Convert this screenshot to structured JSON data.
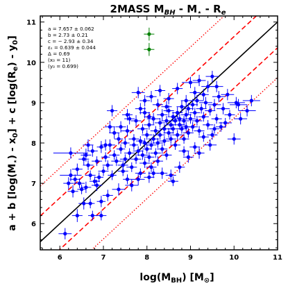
{
  "chart_data": {
    "type": "scatter",
    "title": "2MASS M",
    "title_sub": "BH",
    "title_rest": " - M",
    "title_star": "⋆",
    "title_tail": " - R",
    "title_sub2": "e",
    "xlabel": "log(M",
    "xlabel_sub": "BH",
    "xlabel_tail": ") [M",
    "xlabel_sun": "⊙",
    "xlabel_end": "]",
    "ylabel": "a + b [log(M",
    "ylabel_star": "⋆",
    "ylabel_mid": ") - x",
    "ylabel_sub0": "0",
    "ylabel_mid2": "] + c [log(R",
    "ylabel_sube": "e",
    "ylabel_mid3": ") - y",
    "ylabel_suby": "0",
    "ylabel_end": "]",
    "xlim": [
      5.55,
      11.0
    ],
    "ylim": [
      5.35,
      11.15
    ],
    "xticks": [
      6,
      7,
      8,
      9,
      10,
      11
    ],
    "yticks": [
      6,
      7,
      8,
      9,
      10,
      11
    ],
    "annotations": [
      "a = 7.657 ± 0.062",
      "b = 2.73 ± 0.21",
      "c = − 2.93 ± 0.34",
      "εₛ = 0.639 ± 0.044",
      "Δ = 0.69",
      "(x₀ = 11)",
      "(y₀ = 0.699)"
    ],
    "fit_line": {
      "intercept": 0.0,
      "slope": 1.0,
      "color": "#000000"
    },
    "scatter_band": {
      "offset": 0.639,
      "color": "#ff0000"
    },
    "total_band": {
      "offset": 1.38,
      "color": "#ff0000"
    },
    "series": [
      {
        "color": "#0000ff",
        "points": [
          [
            6.12,
            5.75,
            0.15,
            0.14
          ],
          [
            6.3,
            6.8,
            0.12,
            0.15
          ],
          [
            6.4,
            6.2,
            0.12,
            0.16
          ],
          [
            6.55,
            6.5,
            0.12,
            0.15
          ],
          [
            6.6,
            6.9,
            0.12,
            0.14
          ],
          [
            6.7,
            6.5,
            0.1,
            0.12
          ],
          [
            6.75,
            6.2,
            0.1,
            0.12
          ],
          [
            6.95,
            6.2,
            0.12,
            0.12
          ],
          [
            6.95,
            6.55,
            0.1,
            0.14
          ],
          [
            6.2,
            7.0,
            0.12,
            0.15
          ],
          [
            6.25,
            7.2,
            0.25,
            0.15
          ],
          [
            6.35,
            7.1,
            0.12,
            0.12
          ],
          [
            6.45,
            7.0,
            0.12,
            0.12
          ],
          [
            6.5,
            6.85,
            0.1,
            0.12
          ],
          [
            6.6,
            7.7,
            0.12,
            0.16
          ],
          [
            6.65,
            7.45,
            0.12,
            0.12
          ],
          [
            6.7,
            7.2,
            0.12,
            0.12
          ],
          [
            6.75,
            7.8,
            0.12,
            0.14
          ],
          [
            6.85,
            7.55,
            0.12,
            0.12
          ],
          [
            6.9,
            7.15,
            0.1,
            0.12
          ],
          [
            6.95,
            7.9,
            0.1,
            0.15
          ],
          [
            7.0,
            7.3,
            0.12,
            0.12
          ],
          [
            7.05,
            7.65,
            0.1,
            0.12
          ],
          [
            7.1,
            7.45,
            0.12,
            0.12
          ],
          [
            7.15,
            7.95,
            0.12,
            0.14
          ],
          [
            7.2,
            7.2,
            0.1,
            0.12
          ],
          [
            7.25,
            7.7,
            0.12,
            0.12
          ],
          [
            7.3,
            7.55,
            0.12,
            0.12
          ],
          [
            7.35,
            8.1,
            0.1,
            0.14
          ],
          [
            7.4,
            7.85,
            0.1,
            0.12
          ],
          [
            7.45,
            7.3,
            0.12,
            0.12
          ],
          [
            7.5,
            7.6,
            0.12,
            0.12
          ],
          [
            7.5,
            8.0,
            0.1,
            0.12
          ],
          [
            7.55,
            7.1,
            0.1,
            0.12
          ],
          [
            7.55,
            8.3,
            0.15,
            0.14
          ],
          [
            7.6,
            7.75,
            0.12,
            0.12
          ],
          [
            7.65,
            7.4,
            0.12,
            0.12
          ],
          [
            7.7,
            8.1,
            0.12,
            0.12
          ],
          [
            7.7,
            7.95,
            0.1,
            0.12
          ],
          [
            7.75,
            7.6,
            0.12,
            0.12
          ],
          [
            7.75,
            8.55,
            0.12,
            0.14
          ],
          [
            7.8,
            7.8,
            0.12,
            0.12
          ],
          [
            7.85,
            7.25,
            0.12,
            0.12
          ],
          [
            7.85,
            8.05,
            0.1,
            0.12
          ],
          [
            7.9,
            7.7,
            0.12,
            0.12
          ],
          [
            7.9,
            8.35,
            0.12,
            0.12
          ],
          [
            7.95,
            7.5,
            0.12,
            0.12
          ],
          [
            7.95,
            8.0,
            0.12,
            0.12
          ],
          [
            8.0,
            7.85,
            0.1,
            0.12
          ],
          [
            8.0,
            8.2,
            0.12,
            0.12
          ],
          [
            8.05,
            7.65,
            0.12,
            0.12
          ],
          [
            8.05,
            8.45,
            0.12,
            0.12
          ],
          [
            8.1,
            7.95,
            0.12,
            0.12
          ],
          [
            8.1,
            7.4,
            0.12,
            0.12
          ],
          [
            8.15,
            8.1,
            0.12,
            0.12
          ],
          [
            8.15,
            8.6,
            0.15,
            0.14
          ],
          [
            8.2,
            7.75,
            0.12,
            0.12
          ],
          [
            8.2,
            8.3,
            0.12,
            0.12
          ],
          [
            8.25,
            8.0,
            0.12,
            0.12
          ],
          [
            8.25,
            7.55,
            0.12,
            0.12
          ],
          [
            8.3,
            8.5,
            0.12,
            0.12
          ],
          [
            8.3,
            8.2,
            0.12,
            0.12
          ],
          [
            8.35,
            7.85,
            0.12,
            0.12
          ],
          [
            8.35,
            8.7,
            0.12,
            0.14
          ],
          [
            8.4,
            8.35,
            0.12,
            0.12
          ],
          [
            8.4,
            8.05,
            0.12,
            0.12
          ],
          [
            8.45,
            8.55,
            0.12,
            0.12
          ],
          [
            8.45,
            7.7,
            0.12,
            0.12
          ],
          [
            8.5,
            8.25,
            0.12,
            0.12
          ],
          [
            8.5,
            8.8,
            0.12,
            0.14
          ],
          [
            8.55,
            8.45,
            0.12,
            0.12
          ],
          [
            8.55,
            8.1,
            0.12,
            0.12
          ],
          [
            8.6,
            8.65,
            0.12,
            0.12
          ],
          [
            8.6,
            8.35,
            0.12,
            0.12
          ],
          [
            8.65,
            7.95,
            0.12,
            0.12
          ],
          [
            8.65,
            8.55,
            0.12,
            0.12
          ],
          [
            8.7,
            8.75,
            0.12,
            0.14
          ],
          [
            8.7,
            8.2,
            0.12,
            0.12
          ],
          [
            8.75,
            8.45,
            0.12,
            0.12
          ],
          [
            8.75,
            8.6,
            0.12,
            0.12
          ],
          [
            8.8,
            8.35,
            0.12,
            0.12
          ],
          [
            8.8,
            8.9,
            0.12,
            0.14
          ],
          [
            8.85,
            8.55,
            0.12,
            0.12
          ],
          [
            8.85,
            8.1,
            0.12,
            0.12
          ],
          [
            8.9,
            8.7,
            0.12,
            0.12
          ],
          [
            8.9,
            8.4,
            0.12,
            0.12
          ],
          [
            8.95,
            8.85,
            0.12,
            0.14
          ],
          [
            8.95,
            8.25,
            0.12,
            0.12
          ],
          [
            9.0,
            8.6,
            0.12,
            0.12
          ],
          [
            9.05,
            8.95,
            0.12,
            0.14
          ],
          [
            9.05,
            8.4,
            0.12,
            0.12
          ],
          [
            9.1,
            8.75,
            0.12,
            0.12
          ],
          [
            9.15,
            8.55,
            0.12,
            0.12
          ],
          [
            9.15,
            9.05,
            0.15,
            0.14
          ],
          [
            9.2,
            8.3,
            0.12,
            0.12
          ],
          [
            9.25,
            8.85,
            0.12,
            0.12
          ],
          [
            9.3,
            8.65,
            0.12,
            0.12
          ],
          [
            9.35,
            9.0,
            0.15,
            0.14
          ],
          [
            9.4,
            8.45,
            0.12,
            0.12
          ],
          [
            9.45,
            8.8,
            0.12,
            0.12
          ],
          [
            9.5,
            8.2,
            0.12,
            0.12
          ],
          [
            9.55,
            8.95,
            0.15,
            0.14
          ],
          [
            9.6,
            8.6,
            0.12,
            0.12
          ],
          [
            9.65,
            9.15,
            0.15,
            0.14
          ],
          [
            9.7,
            8.4,
            0.12,
            0.12
          ],
          [
            9.75,
            8.85,
            0.15,
            0.14
          ],
          [
            9.85,
            9.2,
            0.15,
            0.14
          ],
          [
            9.9,
            8.7,
            0.12,
            0.12
          ],
          [
            10.0,
            8.1,
            0.15,
            0.14
          ],
          [
            10.05,
            9.0,
            0.2,
            0.14
          ],
          [
            10.15,
            8.6,
            0.15,
            0.14
          ],
          [
            10.3,
            8.8,
            0.2,
            0.14
          ],
          [
            7.8,
            9.25,
            0.15,
            0.14
          ],
          [
            7.95,
            9.05,
            0.12,
            0.14
          ],
          [
            8.1,
            9.15,
            0.12,
            0.14
          ],
          [
            8.3,
            9.3,
            0.12,
            0.14
          ],
          [
            8.5,
            9.1,
            0.12,
            0.14
          ],
          [
            8.7,
            9.35,
            0.12,
            0.14
          ],
          [
            8.9,
            9.05,
            0.12,
            0.14
          ],
          [
            9.0,
            9.5,
            0.2,
            0.14
          ],
          [
            9.1,
            9.25,
            0.12,
            0.14
          ],
          [
            9.2,
            9.55,
            0.15,
            0.14
          ],
          [
            9.3,
            9.2,
            0.12,
            0.14
          ],
          [
            9.4,
            9.4,
            0.15,
            0.14
          ],
          [
            9.5,
            9.65,
            0.15,
            0.14
          ],
          [
            9.6,
            9.4,
            0.15,
            0.14
          ],
          [
            7.4,
            8.4,
            0.12,
            0.14
          ],
          [
            7.6,
            8.6,
            0.12,
            0.14
          ],
          [
            7.2,
            8.8,
            0.12,
            0.14
          ],
          [
            7.95,
            8.75,
            0.12,
            0.14
          ],
          [
            7.35,
            6.85,
            0.15,
            0.15
          ],
          [
            7.65,
            6.95,
            0.15,
            0.15
          ],
          [
            7.8,
            7.1,
            0.15,
            0.15
          ],
          [
            8.05,
            7.15,
            0.12,
            0.14
          ],
          [
            8.35,
            7.25,
            0.12,
            0.14
          ],
          [
            8.55,
            7.2,
            0.12,
            0.14
          ],
          [
            8.75,
            7.4,
            0.12,
            0.14
          ],
          [
            8.95,
            7.65,
            0.12,
            0.14
          ],
          [
            9.2,
            7.75,
            0.12,
            0.14
          ],
          [
            9.45,
            7.95,
            0.15,
            0.14
          ],
          [
            7.1,
            6.7,
            0.12,
            0.14
          ],
          [
            6.85,
            6.95,
            0.12,
            0.14
          ],
          [
            7.45,
            7.45,
            0.12,
            0.12
          ],
          [
            7.55,
            8.7,
            0.12,
            0.14
          ],
          [
            7.25,
            8.25,
            0.12,
            0.14
          ],
          [
            6.55,
            7.6,
            0.12,
            0.14
          ],
          [
            6.4,
            7.35,
            0.12,
            0.14
          ],
          [
            6.25,
            7.75,
            0.4,
            0.14
          ],
          [
            6.8,
            7.05,
            0.12,
            0.12
          ],
          [
            6.65,
            7.95,
            0.12,
            0.14
          ],
          [
            8.25,
            8.95,
            0.12,
            0.14
          ],
          [
            8.45,
            8.9,
            0.12,
            0.14
          ],
          [
            8.85,
            7.8,
            0.12,
            0.12
          ],
          [
            9.1,
            7.9,
            0.12,
            0.12
          ],
          [
            9.3,
            8.15,
            0.12,
            0.12
          ],
          [
            9.55,
            8.35,
            0.12,
            0.12
          ],
          [
            9.8,
            8.5,
            0.15,
            0.12
          ],
          [
            10.1,
            8.95,
            0.2,
            0.14
          ],
          [
            10.4,
            9.05,
            0.2,
            0.14
          ],
          [
            8.6,
            7.05,
            0.12,
            0.12
          ],
          [
            7.85,
            8.85,
            0.12,
            0.14
          ],
          [
            8.05,
            8.65,
            0.12,
            0.12
          ],
          [
            8.15,
            7.25,
            0.12,
            0.12
          ],
          [
            7.05,
            7.95,
            0.12,
            0.14
          ],
          [
            7.15,
            8.4,
            0.12,
            0.14
          ]
        ]
      },
      {
        "color": "#008000",
        "points": [
          [
            8.05,
            10.7,
            0.12,
            0.16
          ],
          [
            8.05,
            10.32,
            0.12,
            0.16
          ]
        ]
      }
    ]
  }
}
